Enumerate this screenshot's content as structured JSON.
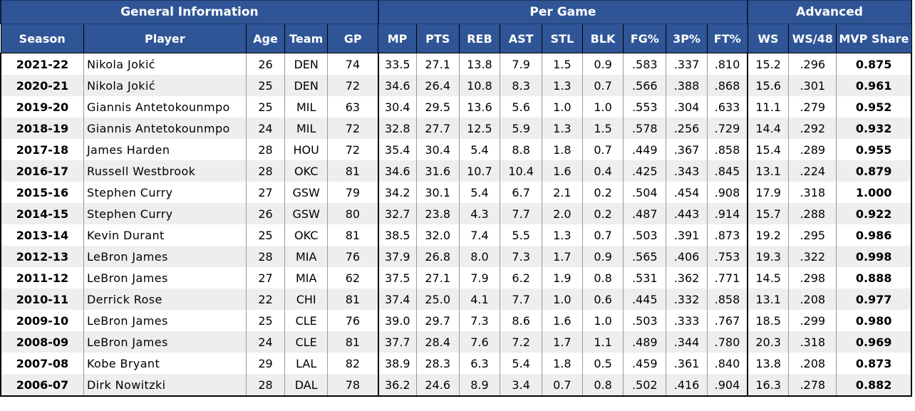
{
  "groups": {
    "general": "General Information",
    "per_game": "Per Game",
    "advanced": "Advanced"
  },
  "columns": [
    "Season",
    "Player",
    "Age",
    "Team",
    "GP",
    "MP",
    "PTS",
    "REB",
    "AST",
    "STL",
    "BLK",
    "FG%",
    "3P%",
    "FT%",
    "WS",
    "WS/48",
    "MVP Share"
  ],
  "rows": [
    [
      "2021-22",
      "Nikola Jokić",
      "26",
      "DEN",
      "74",
      "33.5",
      "27.1",
      "13.8",
      "7.9",
      "1.5",
      "0.9",
      ".583",
      ".337",
      ".810",
      "15.2",
      ".296",
      "0.875"
    ],
    [
      "2020-21",
      "Nikola Jokić",
      "25",
      "DEN",
      "72",
      "34.6",
      "26.4",
      "10.8",
      "8.3",
      "1.3",
      "0.7",
      ".566",
      ".388",
      ".868",
      "15.6",
      ".301",
      "0.961"
    ],
    [
      "2019-20",
      "Giannis Antetokounmpo",
      "25",
      "MIL",
      "63",
      "30.4",
      "29.5",
      "13.6",
      "5.6",
      "1.0",
      "1.0",
      ".553",
      ".304",
      ".633",
      "11.1",
      ".279",
      "0.952"
    ],
    [
      "2018-19",
      "Giannis Antetokounmpo",
      "24",
      "MIL",
      "72",
      "32.8",
      "27.7",
      "12.5",
      "5.9",
      "1.3",
      "1.5",
      ".578",
      ".256",
      ".729",
      "14.4",
      ".292",
      "0.932"
    ],
    [
      "2017-18",
      "James Harden",
      "28",
      "HOU",
      "72",
      "35.4",
      "30.4",
      "5.4",
      "8.8",
      "1.8",
      "0.7",
      ".449",
      ".367",
      ".858",
      "15.4",
      ".289",
      "0.955"
    ],
    [
      "2016-17",
      "Russell Westbrook",
      "28",
      "OKC",
      "81",
      "34.6",
      "31.6",
      "10.7",
      "10.4",
      "1.6",
      "0.4",
      ".425",
      ".343",
      ".845",
      "13.1",
      ".224",
      "0.879"
    ],
    [
      "2015-16",
      "Stephen Curry",
      "27",
      "GSW",
      "79",
      "34.2",
      "30.1",
      "5.4",
      "6.7",
      "2.1",
      "0.2",
      ".504",
      ".454",
      ".908",
      "17.9",
      ".318",
      "1.000"
    ],
    [
      "2014-15",
      "Stephen Curry",
      "26",
      "GSW",
      "80",
      "32.7",
      "23.8",
      "4.3",
      "7.7",
      "2.0",
      "0.2",
      ".487",
      ".443",
      ".914",
      "15.7",
      ".288",
      "0.922"
    ],
    [
      "2013-14",
      "Kevin Durant",
      "25",
      "OKC",
      "81",
      "38.5",
      "32.0",
      "7.4",
      "5.5",
      "1.3",
      "0.7",
      ".503",
      ".391",
      ".873",
      "19.2",
      ".295",
      "0.986"
    ],
    [
      "2012-13",
      "LeBron James",
      "28",
      "MIA",
      "76",
      "37.9",
      "26.8",
      "8.0",
      "7.3",
      "1.7",
      "0.9",
      ".565",
      ".406",
      ".753",
      "19.3",
      ".322",
      "0.998"
    ],
    [
      "2011-12",
      "LeBron James",
      "27",
      "MIA",
      "62",
      "37.5",
      "27.1",
      "7.9",
      "6.2",
      "1.9",
      "0.8",
      ".531",
      ".362",
      ".771",
      "14.5",
      ".298",
      "0.888"
    ],
    [
      "2010-11",
      "Derrick Rose",
      "22",
      "CHI",
      "81",
      "37.4",
      "25.0",
      "4.1",
      "7.7",
      "1.0",
      "0.6",
      ".445",
      ".332",
      ".858",
      "13.1",
      ".208",
      "0.977"
    ],
    [
      "2009-10",
      "LeBron James",
      "25",
      "CLE",
      "76",
      "39.0",
      "29.7",
      "7.3",
      "8.6",
      "1.6",
      "1.0",
      ".503",
      ".333",
      ".767",
      "18.5",
      ".299",
      "0.980"
    ],
    [
      "2008-09",
      "LeBron James",
      "24",
      "CLE",
      "81",
      "37.7",
      "28.4",
      "7.6",
      "7.2",
      "1.7",
      "1.1",
      ".489",
      ".344",
      ".780",
      "20.3",
      ".318",
      "0.969"
    ],
    [
      "2007-08",
      "Kobe Bryant",
      "29",
      "LAL",
      "82",
      "38.9",
      "28.3",
      "6.3",
      "5.4",
      "1.8",
      "0.5",
      ".459",
      ".361",
      ".840",
      "13.8",
      ".208",
      "0.873"
    ],
    [
      "2006-07",
      "Dirk Nowitzki",
      "28",
      "DAL",
      "78",
      "36.2",
      "24.6",
      "8.9",
      "3.4",
      "0.7",
      "0.8",
      ".502",
      ".416",
      ".904",
      "16.3",
      ".278",
      "0.882"
    ]
  ]
}
